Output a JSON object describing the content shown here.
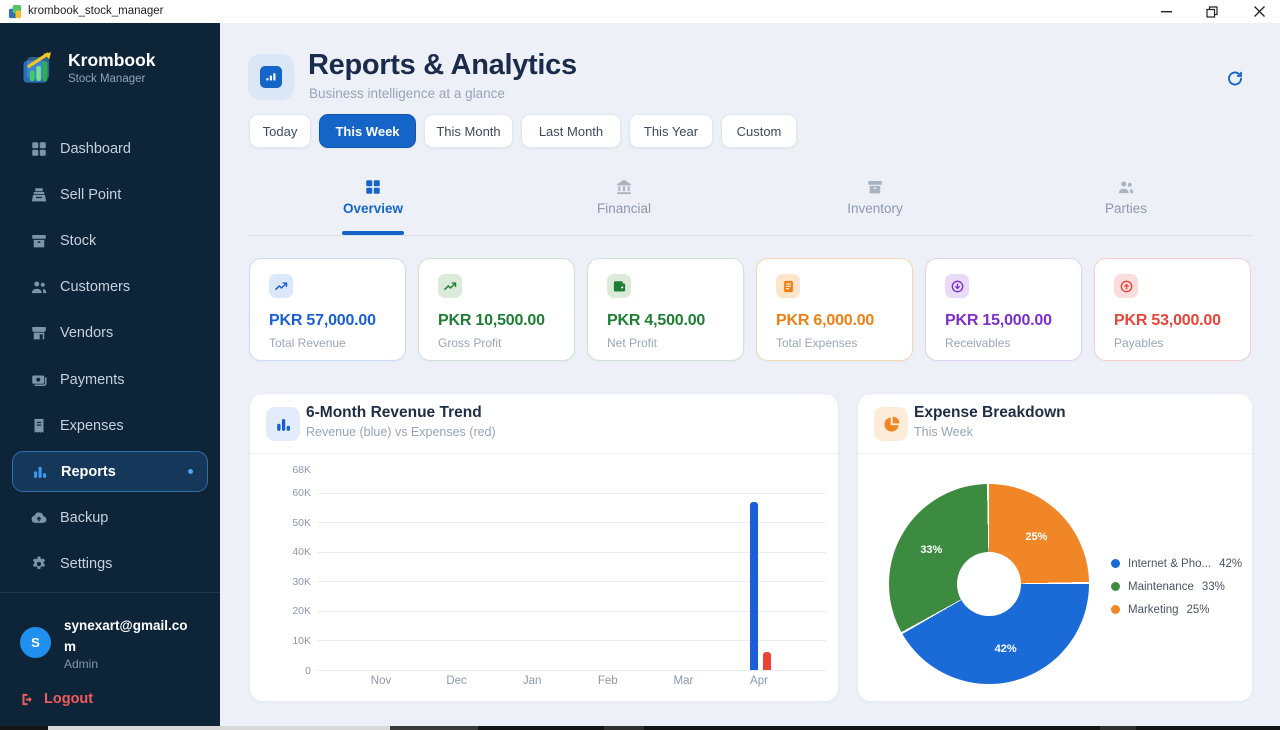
{
  "window": {
    "title": "krombook_stock_manager"
  },
  "sidebar": {
    "brand": {
      "name": "Krombook",
      "tagline": "Stock Manager"
    },
    "items": [
      {
        "label": "Dashboard",
        "icon": "dashboard-icon",
        "active": false
      },
      {
        "label": "Sell Point",
        "icon": "cash-register-icon",
        "active": false
      },
      {
        "label": "Stock",
        "icon": "box-icon",
        "active": false
      },
      {
        "label": "Customers",
        "icon": "people-icon",
        "active": false
      },
      {
        "label": "Vendors",
        "icon": "storefront-icon",
        "active": false
      },
      {
        "label": "Payments",
        "icon": "payments-icon",
        "active": false
      },
      {
        "label": "Expenses",
        "icon": "receipt-icon",
        "active": false
      },
      {
        "label": "Reports",
        "icon": "bar-chart-icon",
        "active": true
      },
      {
        "label": "Backup",
        "icon": "cloud-upload-icon",
        "active": false
      },
      {
        "label": "Settings",
        "icon": "gear-icon",
        "active": false
      }
    ],
    "user": {
      "avatar_initial": "S",
      "email": "synexart@gmail.com",
      "role": "Admin"
    },
    "logout_label": "Logout"
  },
  "header": {
    "title": "Reports & Analytics",
    "subtitle": "Business intelligence at a glance"
  },
  "filters": [
    {
      "label": "Today",
      "active": false
    },
    {
      "label": "This Week",
      "active": true
    },
    {
      "label": "This Month",
      "active": false
    },
    {
      "label": "Last Month",
      "active": false
    },
    {
      "label": "This Year",
      "active": false
    },
    {
      "label": "Custom",
      "active": false
    }
  ],
  "tabs": [
    {
      "label": "Overview",
      "icon": "grid-icon",
      "active": true
    },
    {
      "label": "Financial",
      "icon": "bank-icon",
      "active": false
    },
    {
      "label": "Inventory",
      "icon": "archive-icon",
      "active": false
    },
    {
      "label": "Parties",
      "icon": "people-icon",
      "active": false
    }
  ],
  "kpis": [
    {
      "value": "PKR 57,000.00",
      "label": "Total Revenue",
      "icon": "trending-up-icon",
      "value_color": "#1a5fd6",
      "icon_color": "#1a5fd6",
      "icon_bg": "#dbe7fa",
      "border": "#ccdcf3"
    },
    {
      "value": "PKR 10,500.00",
      "label": "Gross Profit",
      "icon": "trending-up-icon",
      "value_color": "#1e7e34",
      "icon_color": "#1e7e34",
      "icon_bg": "#dcead9",
      "border": "#cfe3d4"
    },
    {
      "value": "PKR 4,500.00",
      "label": "Net Profit",
      "icon": "wallet-icon",
      "value_color": "#1e7e34",
      "icon_color": "#1e7e34",
      "icon_bg": "#dcead9",
      "border": "#cfe3d4"
    },
    {
      "value": "PKR 6,000.00",
      "label": "Total Expenses",
      "icon": "receipt-filled-icon",
      "value_color": "#ef7f14",
      "icon_color": "#ef7f14",
      "icon_bg": "#fde4cb",
      "border": "#f6d7b5"
    },
    {
      "value": "PKR 15,000.00",
      "label": "Receivables",
      "icon": "arrow-down-circle-icon",
      "value_color": "#7c2fc9",
      "icon_color": "#7c2fc9",
      "icon_bg": "#e9daf8",
      "border": "#e2d3f3"
    },
    {
      "value": "PKR 53,000.00",
      "label": "Payables",
      "icon": "arrow-up-circle-icon",
      "value_color": "#e84438",
      "icon_color": "#e84438",
      "icon_bg": "#fcdddd",
      "border": "#f6cfd0"
    }
  ],
  "revenue_card": {
    "title": "6-Month Revenue Trend",
    "subtitle": "Revenue (blue) vs Expenses (red)",
    "icon": "bar-chart-icon"
  },
  "expense_card": {
    "title": "Expense Breakdown",
    "subtitle": "This Week",
    "icon": "pie-chart-icon"
  },
  "chart_data": [
    {
      "type": "bar",
      "title": "6-Month Revenue Trend",
      "categories": [
        "Nov",
        "Dec",
        "Jan",
        "Feb",
        "Mar",
        "Apr"
      ],
      "series": [
        {
          "name": "Revenue",
          "color": "#1a5fd6",
          "values": [
            0,
            0,
            0,
            0,
            0,
            57000
          ]
        },
        {
          "name": "Expenses",
          "color": "#ea4437",
          "values": [
            0,
            0,
            0,
            0,
            0,
            6000
          ]
        }
      ],
      "ylim": [
        0,
        68000
      ],
      "ytick_values": [
        0,
        10000,
        20000,
        30000,
        40000,
        50000,
        60000,
        68000
      ],
      "ytick_labels": [
        "0",
        "10K",
        "20K",
        "30K",
        "40K",
        "50K",
        "60K",
        "68K"
      ],
      "grid": true,
      "legend": false
    },
    {
      "type": "doughnut",
      "title": "Expense Breakdown",
      "slices": [
        {
          "label": "Internet & Pho...",
          "value": 42,
          "value_label": "42%",
          "color": "#1a6bd8"
        },
        {
          "label": "Maintenance",
          "value": 33,
          "value_label": "33%",
          "color": "#3d8b40"
        },
        {
          "label": "Marketing",
          "value": 25,
          "value_label": "25%",
          "color": "#f18626"
        }
      ],
      "draw_sequence": [
        2,
        0,
        1
      ],
      "legend_position": "right"
    }
  ]
}
